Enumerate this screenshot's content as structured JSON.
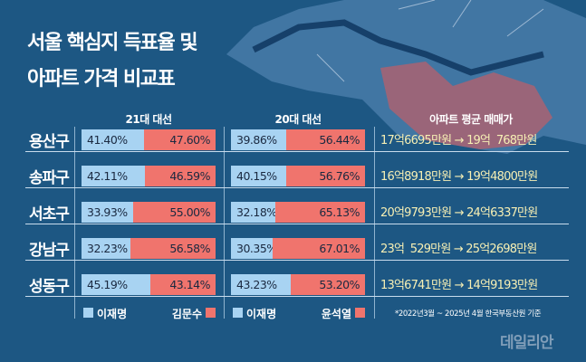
{
  "title_lines": [
    "서울 핵심지 득표율 및",
    "아파트 가격 비교표"
  ],
  "column_headers": {
    "election21": "21대 대선",
    "election20": "20대 대선",
    "price": "아파트 평균 매매가"
  },
  "colors": {
    "lee": "#a8d3f2",
    "opponent": "#f0746d",
    "price_text": "#f6efb4",
    "background": "#1d5783"
  },
  "chart_data": {
    "type": "table",
    "rows": [
      {
        "district": "용산구",
        "e21_lee": "41.40%",
        "e21_kim": "47.60%",
        "e20_lee": "39.86%",
        "e20_yoon": "56.44%",
        "price": "17억6695만원 → 19억  768만원"
      },
      {
        "district": "송파구",
        "e21_lee": "42.11%",
        "e21_kim": "46.59%",
        "e20_lee": "40.15%",
        "e20_yoon": "56.76%",
        "price": "16억8918만원 → 19억4800만원"
      },
      {
        "district": "서초구",
        "e21_lee": "33.93%",
        "e21_kim": "55.00%",
        "e20_lee": "32.18%",
        "e20_yoon": "65.13%",
        "price": "20억9793만원 → 24억6337만원"
      },
      {
        "district": "강남구",
        "e21_lee": "32.23%",
        "e21_kim": "56.58%",
        "e20_lee": "30.35%",
        "e20_yoon": "67.01%",
        "price": "23억  529만원 → 25억2698만원"
      },
      {
        "district": "성동구",
        "e21_lee": "45.19%",
        "e21_kim": "43.14%",
        "e20_lee": "43.23%",
        "e20_yoon": "53.20%",
        "price": "13억6741만원 → 14억9193만원"
      }
    ]
  },
  "legend": {
    "e21_left": "이재명",
    "e21_right": "김문수",
    "e20_left": "이재명",
    "e20_right": "윤석열"
  },
  "footnote": "*2022년3월 ~ 2025년 4월 한국부동산원 기준",
  "logo": "데일리안"
}
